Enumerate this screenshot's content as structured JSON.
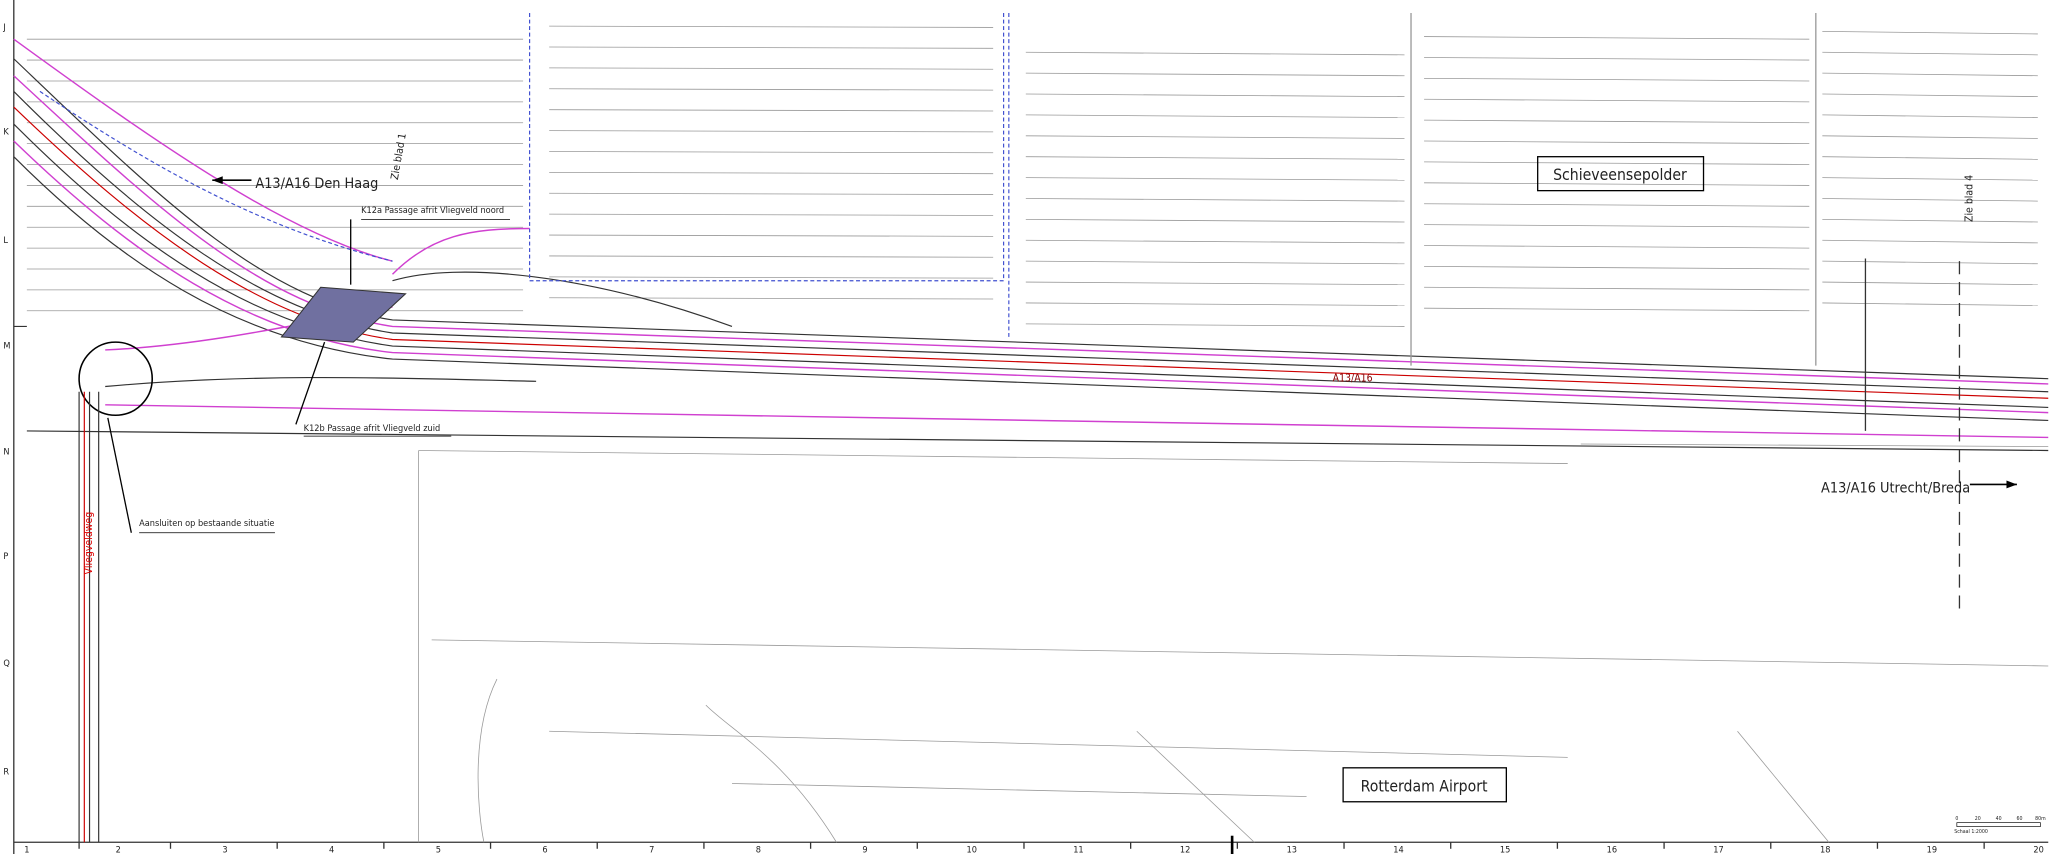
{
  "labels": {
    "den_haag": "A13/A16 Den Haag",
    "k12a": "K12a Passage afrit Vliegveld noord",
    "k12b": "K12b Passage afrit Vliegveld zuid",
    "aansluiten": "Aansluiten op bestaande situatie",
    "polder": "Schieveensepolder",
    "airport": "Rotterdam Airport",
    "utrecht": "A13/A16 Utrecht/Breda",
    "zie1": "Zie blad 1",
    "zie4": "Zie blad 4",
    "road": "A13/A16",
    "vliegveldweg": "Vliegveldweg",
    "scale": "Schaal 1:2000"
  },
  "grid": {
    "rows": [
      "J",
      "K",
      "L",
      "M",
      "N",
      "P",
      "Q",
      "R"
    ],
    "columns": [
      "1",
      "2",
      "3",
      "4",
      "5",
      "6",
      "7",
      "8",
      "9",
      "10",
      "11",
      "12",
      "13",
      "14",
      "15",
      "16",
      "17",
      "18",
      "19",
      "20"
    ]
  },
  "scale_bar": [
    "0",
    "20",
    "40",
    "60",
    "80m"
  ]
}
